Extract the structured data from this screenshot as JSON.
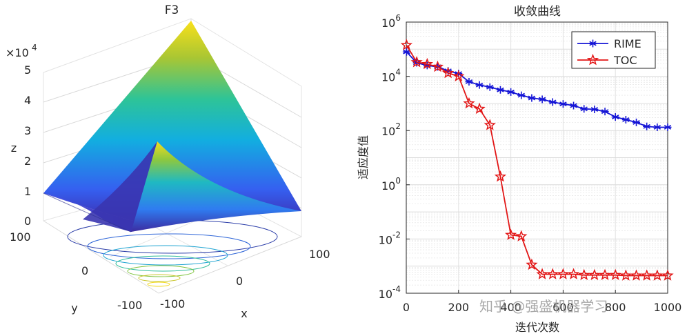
{
  "chart_data": [
    {
      "type": "surface",
      "title": "F3",
      "xlabel": "x",
      "ylabel": "y",
      "zlabel": "z",
      "z_exponent_label": "×10",
      "z_exponent_power": "4",
      "x_ticks": [
        "-100",
        "0",
        "100"
      ],
      "y_ticks": [
        "-100",
        "0",
        "100"
      ],
      "z_ticks": [
        "0",
        "1",
        "2",
        "3",
        "4",
        "5"
      ],
      "xlim": [
        -100,
        100
      ],
      "ylim": [
        -100,
        100
      ],
      "zlim": [
        0,
        50000
      ],
      "grid": true,
      "colormap": "parula"
    },
    {
      "type": "line",
      "title": "收敛曲线",
      "xlabel": "迭代次数",
      "ylabel": "适应度值",
      "yscale": "log",
      "xlim": [
        0,
        1000
      ],
      "ylim_log10": [
        -4,
        6
      ],
      "x_ticks": [
        "0",
        "200",
        "400",
        "600",
        "800",
        "1000"
      ],
      "y_tick_base": "10",
      "y_tick_powers": [
        "-4",
        "-2",
        "0",
        "2",
        "4",
        "6"
      ],
      "grid": true,
      "legend": "top-right",
      "series": [
        {
          "name": "RIME",
          "color": "#1515d6",
          "marker": "asterisk",
          "x": [
            1,
            40,
            80,
            120,
            160,
            200,
            240,
            280,
            320,
            360,
            400,
            440,
            480,
            520,
            560,
            600,
            640,
            680,
            720,
            760,
            800,
            840,
            880,
            920,
            960,
            1000
          ],
          "y_log10": [
            4.9,
            4.5,
            4.4,
            4.35,
            4.2,
            4.1,
            3.8,
            3.68,
            3.6,
            3.5,
            3.42,
            3.3,
            3.2,
            3.15,
            3.05,
            2.98,
            2.92,
            2.8,
            2.78,
            2.7,
            2.5,
            2.4,
            2.3,
            2.15,
            2.12,
            2.12
          ]
        },
        {
          "name": "TOC",
          "color": "#e21515",
          "marker": "pentagram",
          "x": [
            1,
            40,
            80,
            120,
            160,
            200,
            240,
            280,
            320,
            360,
            400,
            440,
            480,
            520,
            560,
            600,
            640,
            680,
            720,
            760,
            800,
            840,
            880,
            920,
            960,
            1000
          ],
          "y_log10": [
            5.15,
            4.52,
            4.45,
            4.35,
            4.12,
            4.0,
            3.0,
            2.8,
            2.2,
            0.3,
            -1.85,
            -1.9,
            -2.95,
            -3.3,
            -3.3,
            -3.3,
            -3.3,
            -3.33,
            -3.33,
            -3.33,
            -3.33,
            -3.35,
            -3.35,
            -3.35,
            -3.35,
            -3.35
          ]
        }
      ]
    }
  ],
  "watermark": "知乎 @强盛机器学习"
}
